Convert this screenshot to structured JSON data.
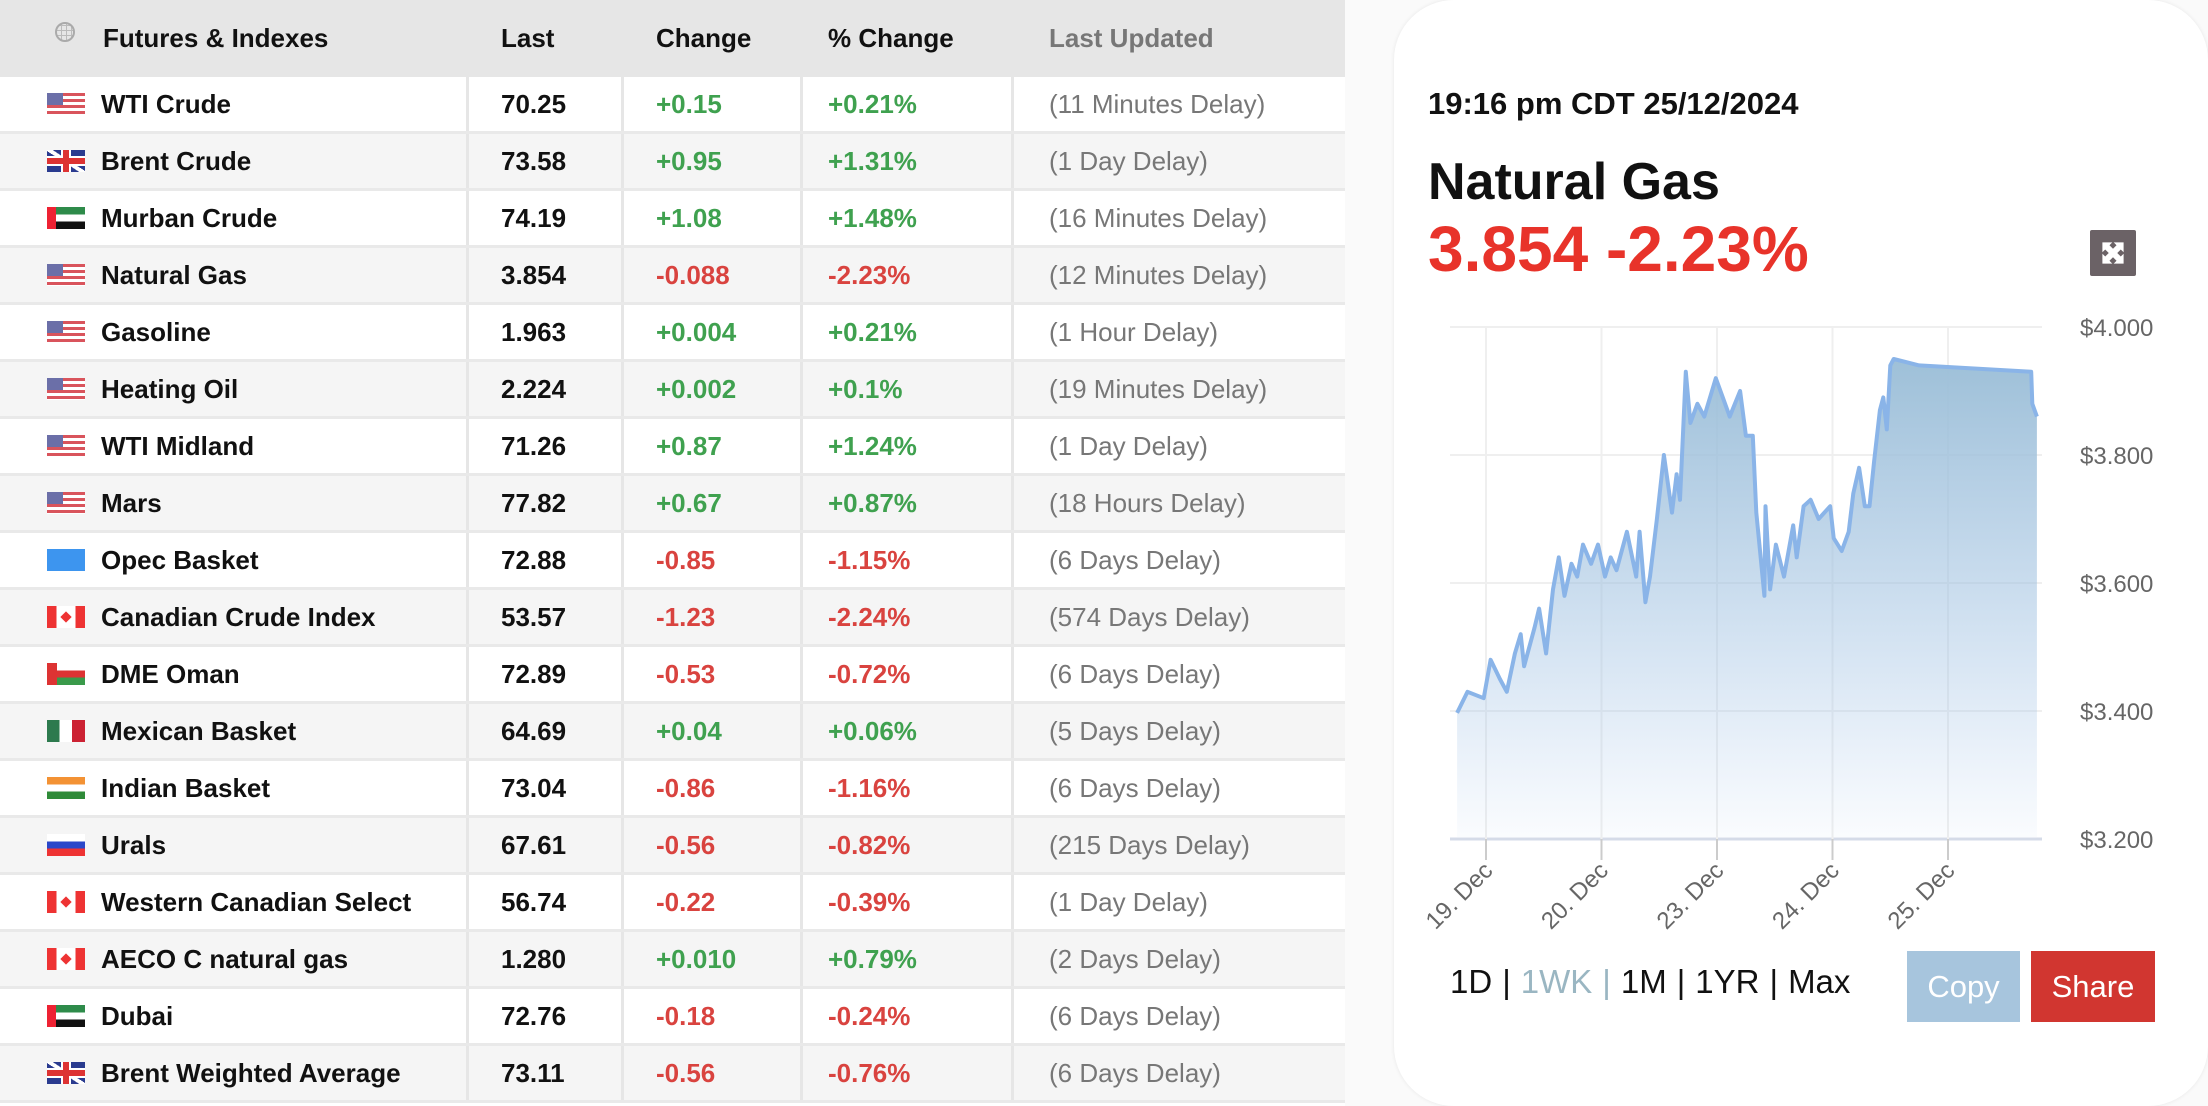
{
  "table": {
    "headers": [
      "Futures & Indexes",
      "Last",
      "Change",
      "% Change",
      "Last Updated"
    ],
    "rows": [
      {
        "flag": "us",
        "name": "WTI Crude",
        "last": "70.25",
        "change": "+0.15",
        "pct": "+0.21%",
        "updated": "(11 Minutes Delay)",
        "dir": "pos"
      },
      {
        "flag": "gb",
        "name": "Brent Crude",
        "last": "73.58",
        "change": "+0.95",
        "pct": "+1.31%",
        "updated": "(1 Day Delay)",
        "dir": "pos"
      },
      {
        "flag": "ae",
        "name": "Murban Crude",
        "last": "74.19",
        "change": "+1.08",
        "pct": "+1.48%",
        "updated": "(16 Minutes Delay)",
        "dir": "pos"
      },
      {
        "flag": "us",
        "name": "Natural Gas",
        "last": "3.854",
        "change": "-0.088",
        "pct": "-2.23%",
        "updated": "(12 Minutes Delay)",
        "dir": "neg"
      },
      {
        "flag": "us",
        "name": "Gasoline",
        "last": "1.963",
        "change": "+0.004",
        "pct": "+0.21%",
        "updated": "(1 Hour Delay)",
        "dir": "pos"
      },
      {
        "flag": "us",
        "name": "Heating Oil",
        "last": "2.224",
        "change": "+0.002",
        "pct": "+0.1%",
        "updated": "(19 Minutes Delay)",
        "dir": "pos"
      },
      {
        "flag": "us",
        "name": "WTI Midland",
        "last": "71.26",
        "change": "+0.87",
        "pct": "+1.24%",
        "updated": "(1 Day Delay)",
        "dir": "pos"
      },
      {
        "flag": "us",
        "name": "Mars",
        "last": "77.82",
        "change": "+0.67",
        "pct": "+0.87%",
        "updated": "(18 Hours Delay)",
        "dir": "pos"
      },
      {
        "flag": "opec",
        "name": "Opec Basket",
        "last": "72.88",
        "change": "-0.85",
        "pct": "-1.15%",
        "updated": "(6 Days Delay)",
        "dir": "neg"
      },
      {
        "flag": "ca",
        "name": "Canadian Crude Index",
        "last": "53.57",
        "change": "-1.23",
        "pct": "-2.24%",
        "updated": "(574 Days Delay)",
        "dir": "neg"
      },
      {
        "flag": "om",
        "name": "DME Oman",
        "last": "72.89",
        "change": "-0.53",
        "pct": "-0.72%",
        "updated": "(6 Days Delay)",
        "dir": "neg"
      },
      {
        "flag": "mx",
        "name": "Mexican Basket",
        "last": "64.69",
        "change": "+0.04",
        "pct": "+0.06%",
        "updated": "(5 Days Delay)",
        "dir": "pos"
      },
      {
        "flag": "in",
        "name": "Indian Basket",
        "last": "73.04",
        "change": "-0.86",
        "pct": "-1.16%",
        "updated": "(6 Days Delay)",
        "dir": "neg"
      },
      {
        "flag": "ru",
        "name": "Urals",
        "last": "67.61",
        "change": "-0.56",
        "pct": "-0.82%",
        "updated": "(215 Days Delay)",
        "dir": "neg"
      },
      {
        "flag": "ca",
        "name": "Western Canadian Select",
        "last": "56.74",
        "change": "-0.22",
        "pct": "-0.39%",
        "updated": "(1 Day Delay)",
        "dir": "neg"
      },
      {
        "flag": "ca",
        "name": "AECO C natural gas",
        "last": "1.280",
        "change": "+0.010",
        "pct": "+0.79%",
        "updated": "(2 Days Delay)",
        "dir": "pos"
      },
      {
        "flag": "ae",
        "name": "Dubai",
        "last": "72.76",
        "change": "-0.18",
        "pct": "-0.24%",
        "updated": "(6 Days Delay)",
        "dir": "neg"
      },
      {
        "flag": "gb",
        "name": "Brent Weighted Average",
        "last": "73.11",
        "change": "-0.56",
        "pct": "-0.76%",
        "updated": "(6 Days Delay)",
        "dir": "neg"
      }
    ]
  },
  "card": {
    "timestamp": "19:16 pm CDT 25/12/2024",
    "instrument": "Natural Gas",
    "quote": "3.854 -2.23%",
    "ranges": [
      "1D",
      "|",
      "1WK",
      "|",
      "1M",
      "|",
      "1YR",
      "|",
      "Max"
    ],
    "active_range": "1WK",
    "copy_label": "Copy",
    "share_label": "Share",
    "colors": {
      "negative": "#e8332a",
      "line": "#8ab4e8",
      "copy": "#a7c5dd",
      "share": "#d13630"
    }
  },
  "chart_data": {
    "type": "area",
    "title": "Natural Gas",
    "ylim": [
      3.2,
      4.0
    ],
    "y_ticks": [
      {
        "value": 4.0,
        "label": "$4.000"
      },
      {
        "value": 3.8,
        "label": "$3.800"
      },
      {
        "value": 3.6,
        "label": "$3.600"
      },
      {
        "value": 3.4,
        "label": "$3.400"
      },
      {
        "value": 3.2,
        "label": "$3.200"
      }
    ],
    "x_ticks": [
      {
        "value": 0,
        "label": "19. Dec"
      },
      {
        "value": 1,
        "label": "20. Dec"
      },
      {
        "value": 2,
        "label": "23. Dec"
      },
      {
        "value": 3,
        "label": "24. Dec"
      },
      {
        "value": 4,
        "label": "25. Dec"
      }
    ],
    "points": [
      [
        -0.25,
        3.397
      ],
      [
        -0.16,
        3.43
      ],
      [
        -0.02,
        3.42
      ],
      [
        0.04,
        3.48
      ],
      [
        0.12,
        3.45
      ],
      [
        0.18,
        3.43
      ],
      [
        0.25,
        3.49
      ],
      [
        0.3,
        3.52
      ],
      [
        0.33,
        3.47
      ],
      [
        0.42,
        3.53
      ],
      [
        0.46,
        3.56
      ],
      [
        0.52,
        3.49
      ],
      [
        0.58,
        3.59
      ],
      [
        0.63,
        3.64
      ],
      [
        0.68,
        3.58
      ],
      [
        0.74,
        3.63
      ],
      [
        0.79,
        3.61
      ],
      [
        0.84,
        3.66
      ],
      [
        0.91,
        3.63
      ],
      [
        0.97,
        3.66
      ],
      [
        1.03,
        3.61
      ],
      [
        1.08,
        3.64
      ],
      [
        1.13,
        3.62
      ],
      [
        1.22,
        3.68
      ],
      [
        1.3,
        3.61
      ],
      [
        1.33,
        3.68
      ],
      [
        1.38,
        3.57
      ],
      [
        1.42,
        3.61
      ],
      [
        1.48,
        3.7
      ],
      [
        1.54,
        3.8
      ],
      [
        1.61,
        3.71
      ],
      [
        1.65,
        3.77
      ],
      [
        1.68,
        3.73
      ],
      [
        1.73,
        3.93
      ],
      [
        1.77,
        3.85
      ],
      [
        1.83,
        3.88
      ],
      [
        1.89,
        3.86
      ],
      [
        1.99,
        3.92
      ],
      [
        2.05,
        3.89
      ],
      [
        2.11,
        3.86
      ],
      [
        2.2,
        3.9
      ],
      [
        2.25,
        3.83
      ],
      [
        2.31,
        3.83
      ],
      [
        2.34,
        3.71
      ],
      [
        2.41,
        3.58
      ],
      [
        2.42,
        3.72
      ],
      [
        2.46,
        3.59
      ],
      [
        2.51,
        3.66
      ],
      [
        2.58,
        3.61
      ],
      [
        2.66,
        3.69
      ],
      [
        2.69,
        3.64
      ],
      [
        2.75,
        3.72
      ],
      [
        2.81,
        3.73
      ],
      [
        2.88,
        3.7
      ],
      [
        2.98,
        3.72
      ],
      [
        3.01,
        3.67
      ],
      [
        3.08,
        3.65
      ],
      [
        3.14,
        3.68
      ],
      [
        3.18,
        3.74
      ],
      [
        3.23,
        3.78
      ],
      [
        3.28,
        3.72
      ],
      [
        3.32,
        3.72
      ],
      [
        3.36,
        3.79
      ],
      [
        3.41,
        3.87
      ],
      [
        3.44,
        3.89
      ],
      [
        3.47,
        3.84
      ],
      [
        3.5,
        3.94
      ],
      [
        3.53,
        3.95
      ],
      [
        3.75,
        3.94
      ],
      [
        4.72,
        3.93
      ],
      [
        4.73,
        3.88
      ],
      [
        4.77,
        3.86
      ]
    ]
  }
}
